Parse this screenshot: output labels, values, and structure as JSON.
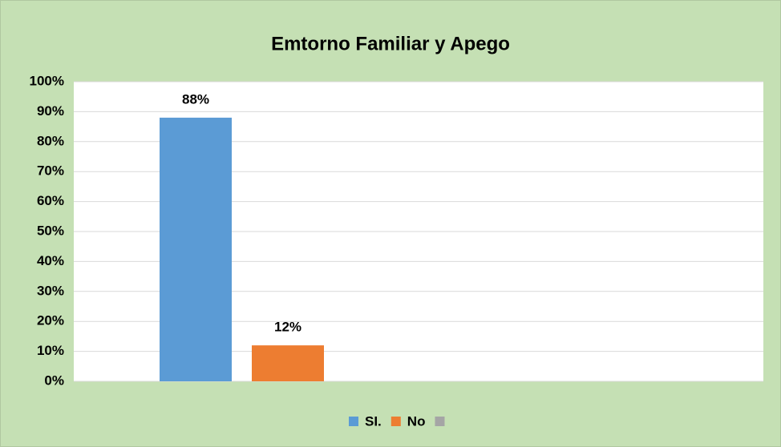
{
  "chart_data": {
    "type": "bar",
    "title": "Emtorno Familiar y Apego",
    "categories": [
      null
    ],
    "series": [
      {
        "name": "SI.",
        "color": "#5b9bd5",
        "values": [
          88
        ],
        "value_labels": [
          "88%"
        ]
      },
      {
        "name": "No",
        "color": "#ed7d31",
        "values": [
          12
        ],
        "value_labels": [
          "12%"
        ]
      },
      {
        "name": null,
        "color": "#a5a5a5",
        "values": [
          null
        ]
      }
    ],
    "ylim": [
      0,
      100
    ],
    "yticks": [
      {
        "value": 0,
        "label": "0%"
      },
      {
        "value": 10,
        "label": "10%"
      },
      {
        "value": 20,
        "label": "20%"
      },
      {
        "value": 30,
        "label": "30%"
      },
      {
        "value": 40,
        "label": "40%"
      },
      {
        "value": 50,
        "label": "50%"
      },
      {
        "value": 60,
        "label": "60%"
      },
      {
        "value": 70,
        "label": "70%"
      },
      {
        "value": 80,
        "label": "80%"
      },
      {
        "value": 90,
        "label": "90%"
      },
      {
        "value": 100,
        "label": "100%"
      }
    ],
    "grid": true,
    "legend": "bottom"
  }
}
